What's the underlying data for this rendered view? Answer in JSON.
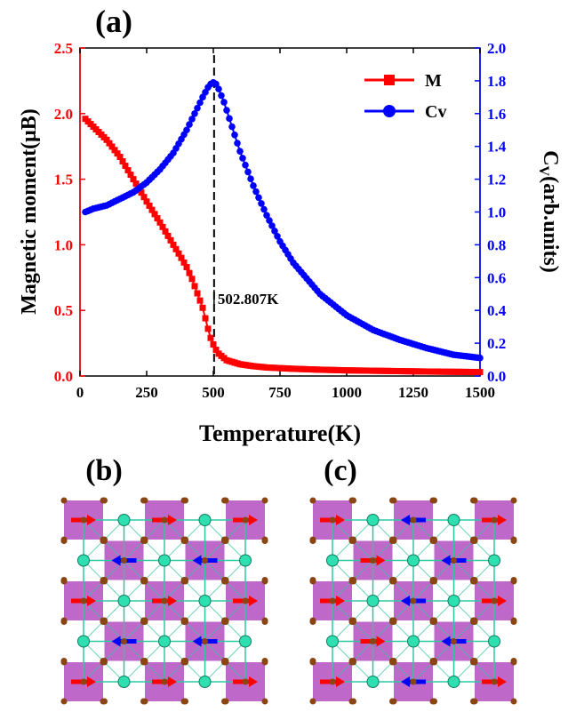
{
  "chart_data": {
    "type": "line",
    "panel_label": "(a)",
    "xlabel": "Temperature(K)",
    "ylabel_left": "Magnetic moment(μB)",
    "ylabel_right_main": "C",
    "ylabel_right_sub": "V",
    "ylabel_right_rest": "(arb.units)",
    "xlim": [
      0,
      1500
    ],
    "ylim_left": [
      0,
      2.5
    ],
    "ylim_right": [
      0,
      2.0
    ],
    "x_ticks": [
      "0",
      "250",
      "500",
      "750",
      "1000",
      "1250",
      "1500"
    ],
    "y_left_ticks": [
      "0.0",
      "0.5",
      "1.0",
      "1.5",
      "2.0",
      "2.5"
    ],
    "y_right_ticks": [
      "0.0",
      "0.2",
      "0.4",
      "0.6",
      "0.8",
      "1.0",
      "1.2",
      "1.4",
      "1.6",
      "1.8",
      "2.0"
    ],
    "annotation": {
      "text": "502.807K",
      "x": 502.807
    },
    "series": [
      {
        "name": "M",
        "axis": "left",
        "color": "#ff0000",
        "marker": "square",
        "x": [
          20,
          50,
          100,
          150,
          200,
          250,
          300,
          350,
          380,
          400,
          420,
          440,
          460,
          470,
          480,
          490,
          500,
          510,
          520,
          550,
          600,
          650,
          700,
          800,
          900,
          1000,
          1100,
          1200,
          1300,
          1400,
          1500
        ],
        "y": [
          1.96,
          1.9,
          1.8,
          1.67,
          1.5,
          1.33,
          1.17,
          1.0,
          0.9,
          0.83,
          0.74,
          0.63,
          0.52,
          0.44,
          0.36,
          0.29,
          0.24,
          0.2,
          0.17,
          0.12,
          0.09,
          0.075,
          0.065,
          0.055,
          0.048,
          0.043,
          0.04,
          0.037,
          0.034,
          0.032,
          0.03
        ]
      },
      {
        "name": "Cv",
        "axis": "right",
        "color": "#0000ff",
        "marker": "circle",
        "x": [
          20,
          50,
          100,
          150,
          200,
          250,
          300,
          350,
          400,
          430,
          460,
          480,
          490,
          500,
          510,
          520,
          540,
          560,
          580,
          600,
          650,
          700,
          750,
          800,
          900,
          1000,
          1100,
          1200,
          1300,
          1400,
          1500
        ],
        "y": [
          1.0,
          1.02,
          1.04,
          1.08,
          1.12,
          1.18,
          1.26,
          1.36,
          1.5,
          1.6,
          1.7,
          1.76,
          1.78,
          1.79,
          1.78,
          1.75,
          1.67,
          1.57,
          1.47,
          1.37,
          1.16,
          0.98,
          0.82,
          0.69,
          0.5,
          0.37,
          0.28,
          0.22,
          0.17,
          0.13,
          0.11
        ]
      }
    ]
  },
  "panels": {
    "b_label": "(b)",
    "c_label": "(c)",
    "colors": {
      "cell": "#b34fc0",
      "spin_up": "#ff0000",
      "spin_down": "#0000ff",
      "large_atom": "#2ee0b0",
      "small_atom": "#8b4513",
      "bond": "#2ec8a0"
    },
    "b_spins": [
      [
        1,
        1,
        1
      ],
      [
        -1,
        -1
      ],
      [
        1,
        1,
        1
      ],
      [
        -1,
        -1
      ],
      [
        1,
        1,
        1
      ]
    ],
    "c_spins": [
      [
        1,
        -1,
        1
      ],
      [
        1,
        -1
      ],
      [
        1,
        -1,
        1
      ],
      [
        1,
        -1
      ],
      [
        1,
        -1,
        1
      ]
    ]
  }
}
